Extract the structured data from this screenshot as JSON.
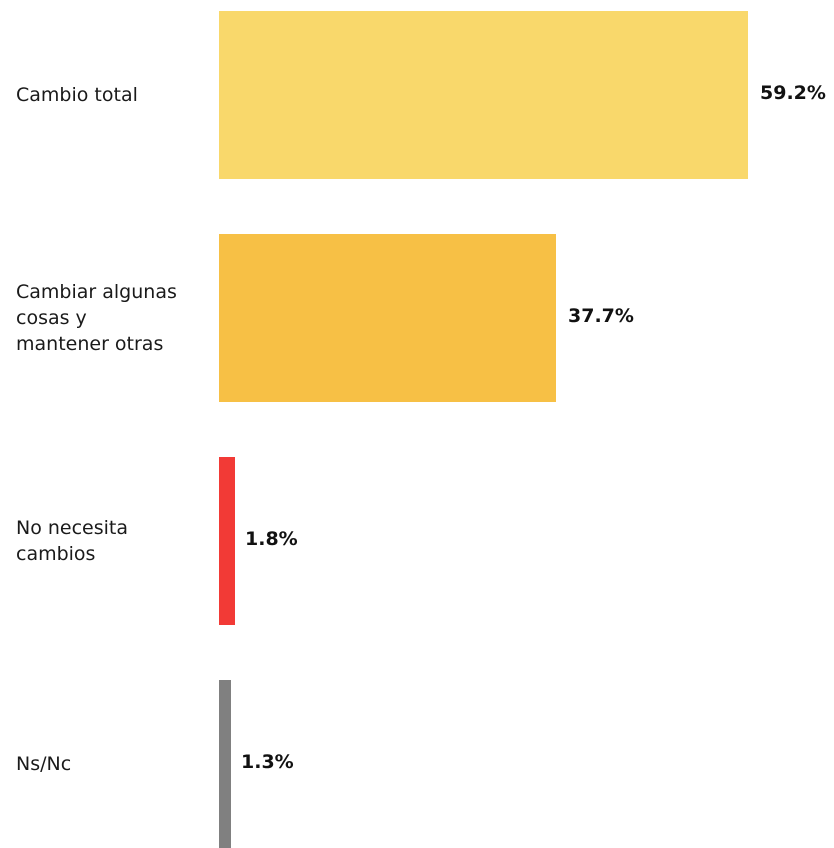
{
  "chart_data": {
    "type": "bar",
    "orientation": "horizontal",
    "categories": [
      "Cambio total",
      "Cambiar algunas cosas y mantener otras",
      "No necesita cambios",
      "Ns/Nc"
    ],
    "category_lines": [
      [
        "Cambio total"
      ],
      [
        "Cambiar algunas",
        "cosas y",
        "mantener otras"
      ],
      [
        "No necesita",
        "cambios"
      ],
      [
        "Ns/Nc"
      ]
    ],
    "values": [
      59.2,
      37.7,
      1.8,
      1.3
    ],
    "value_labels": [
      "59.2%",
      "37.7%",
      "1.8%",
      "1.3%"
    ],
    "colors": [
      "#F9D86B",
      "#F7C045",
      "#F23A36",
      "#808080"
    ],
    "xlim": [
      0,
      59.2
    ],
    "grid": false,
    "title": "",
    "xlabel": "",
    "ylabel": ""
  }
}
